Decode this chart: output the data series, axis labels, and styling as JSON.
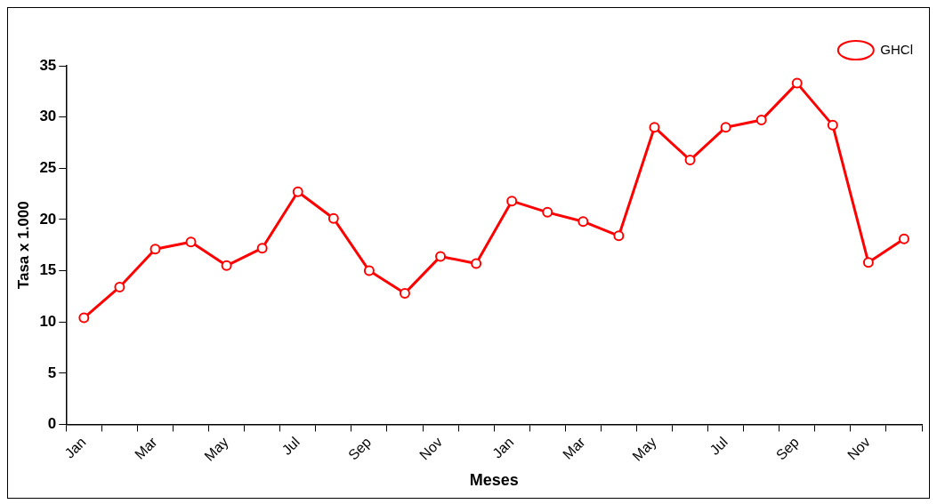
{
  "chart_data": {
    "type": "line",
    "xlabel": "Meses",
    "ylabel": "Tasa x 1.000",
    "categories": [
      "Jan",
      null,
      "Mar",
      null,
      "May",
      null,
      "Jul",
      null,
      "Sep",
      null,
      "Nov",
      null,
      "Jan",
      null,
      "Mar",
      null,
      "May",
      null,
      "Jul",
      null,
      "Sep",
      null,
      "Nov",
      null
    ],
    "series": [
      {
        "name": "GHCl",
        "color": "#ff0000",
        "values": [
          10.4,
          13.4,
          17.1,
          17.8,
          15.5,
          17.2,
          22.7,
          20.1,
          15.0,
          12.8,
          16.4,
          15.7,
          21.8,
          20.7,
          19.8,
          18.4,
          29.0,
          25.8,
          29.0,
          29.7,
          33.3,
          29.2,
          15.8,
          18.1
        ]
      }
    ],
    "ylim": [
      0,
      35
    ],
    "yticks": [
      0,
      5,
      10,
      15,
      20,
      25,
      30,
      35
    ],
    "grid": false,
    "legend": "top right",
    "marker": "circle",
    "line_style": "solid"
  }
}
